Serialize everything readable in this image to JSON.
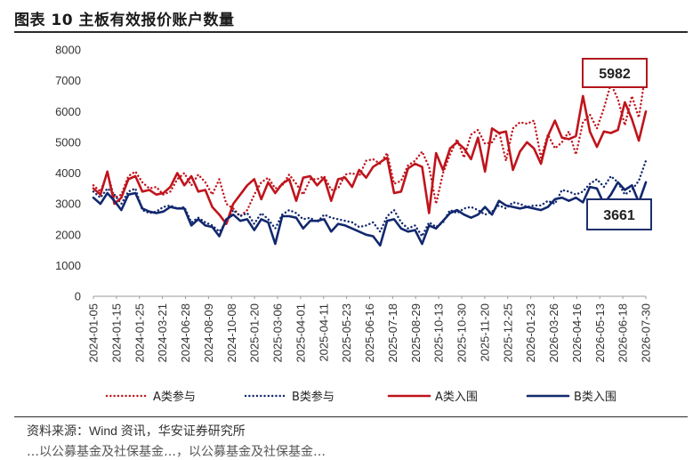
{
  "figure": {
    "title": "图表 10 主板有效报价账户数量",
    "source_prefix": "资料来源：",
    "source_name": "Wind 资讯，华安证券研究所",
    "next_line": "…以公募基金及社保基金…，以公募基金及社保基金…"
  },
  "colors": {
    "red": "#c0141c",
    "navy": "#12286e",
    "callout_red_border": "#b3161d",
    "callout_navy_border": "#1d2e6e"
  },
  "chart_data": {
    "type": "line",
    "ylim": [
      0,
      8000
    ],
    "yticks": [
      "0",
      "1000",
      "2000",
      "3000",
      "4000",
      "5000",
      "6000",
      "7000",
      "8000"
    ],
    "x_tick_labels": [
      "2024-01-05",
      "2024-01-15",
      "2024-01-25",
      "2024-03-21",
      "2024-06-28",
      "2024-08-09",
      "2024-10-08",
      "2025-01-20",
      "2025-03-06",
      "2025-04-01",
      "2025-04-11",
      "2025-05-23",
      "2025-06-16",
      "2025-07-18",
      "2025-08-29",
      "2025-10-13",
      "2025-10-30",
      "2025-11-20",
      "2025-12-25",
      "2026-01-23",
      "2026-03-26",
      "2026-04-16",
      "2026-05-13",
      "2026-06-18",
      "2026-07-30"
    ],
    "x_count": 80,
    "series": [
      {
        "name": "A类参与",
        "style": "dotted",
        "color": "#c0141c",
        "values": [
          3600,
          3400,
          4000,
          3200,
          3300,
          3900,
          4050,
          3700,
          3500,
          3550,
          3300,
          3400,
          3800,
          4000,
          3600,
          3950,
          3700,
          3300,
          3800,
          3000,
          2850,
          2600,
          2800,
          3300,
          3700,
          3850,
          3500,
          3600,
          3950,
          3650,
          3300,
          3800,
          3800,
          3900,
          3450,
          3500,
          3950,
          4000,
          3900,
          4400,
          4450,
          4300,
          4650,
          3650,
          3750,
          4250,
          4400,
          4700,
          4200,
          3000,
          4000,
          4600,
          5100,
          4500,
          5250,
          5400,
          4950,
          5000,
          5350,
          4400,
          5450,
          5650,
          5600,
          5700,
          4500,
          5250,
          4800,
          5000,
          5350,
          4600,
          5650,
          5900,
          5450,
          6100,
          6900,
          6400,
          5550,
          6500,
          5800,
          7300
        ]
      },
      {
        "name": "B类参与",
        "style": "dotted",
        "color": "#12286e",
        "values": [
          3400,
          3200,
          3500,
          3300,
          3000,
          3400,
          3500,
          2800,
          2700,
          2750,
          2900,
          2950,
          2850,
          2900,
          2400,
          2550,
          2400,
          2300,
          2100,
          2400,
          2800,
          2600,
          2700,
          2350,
          2700,
          2500,
          2200,
          2650,
          2800,
          2700,
          2500,
          2550,
          2400,
          2650,
          2550,
          2500,
          2450,
          2400,
          2250,
          2300,
          2400,
          2100,
          2600,
          2800,
          2400,
          2200,
          2300,
          1950,
          2400,
          2250,
          2400,
          2800,
          2700,
          2850,
          2900,
          2800,
          2650,
          2750,
          2950,
          2850,
          3050,
          3000,
          2900,
          2950,
          2950,
          3100,
          3000,
          3450,
          3400,
          3300,
          3400,
          3650,
          3800,
          3550,
          3900,
          3700,
          3300,
          3450,
          3750,
          4400
        ]
      },
      {
        "name": "A类入围",
        "style": "solid",
        "color": "#c0141c",
        "values": [
          3500,
          3300,
          4050,
          3000,
          3200,
          3800,
          3900,
          3400,
          3450,
          3300,
          3350,
          3550,
          4000,
          3600,
          3900,
          3400,
          3450,
          2900,
          2650,
          2350,
          3000,
          3300,
          3600,
          3800,
          3150,
          3700,
          3350,
          3650,
          3800,
          3100,
          3850,
          3900,
          3600,
          3850,
          3100,
          3800,
          3850,
          3550,
          4100,
          3850,
          4200,
          4350,
          4500,
          3350,
          3400,
          4150,
          4300,
          4200,
          2700,
          4650,
          4100,
          4800,
          5000,
          4800,
          4450,
          5150,
          4050,
          5450,
          5300,
          5350,
          4100,
          4700,
          5000,
          4800,
          4300,
          5200,
          5700,
          5150,
          5100,
          5200,
          6500,
          5350,
          4850,
          5350,
          5300,
          5400,
          6300,
          5750,
          5050,
          6000
        ]
      },
      {
        "name": "B类入围",
        "style": "solid",
        "color": "#12286e",
        "values": [
          3200,
          3000,
          3350,
          3100,
          2800,
          3300,
          3350,
          2850,
          2750,
          2700,
          2750,
          2900,
          2850,
          2850,
          2300,
          2500,
          2300,
          2250,
          1950,
          2500,
          2650,
          2450,
          2500,
          2150,
          2500,
          2400,
          1700,
          2600,
          2600,
          2550,
          2200,
          2450,
          2450,
          2500,
          2100,
          2350,
          2300,
          2200,
          2100,
          2000,
          1950,
          1650,
          2450,
          2500,
          2200,
          2100,
          2150,
          1700,
          2300,
          2200,
          2450,
          2700,
          2800,
          2650,
          2550,
          2650,
          2900,
          2650,
          3100,
          2950,
          2900,
          2850,
          2900,
          2850,
          2800,
          2900,
          3150,
          3200,
          3100,
          3200,
          3050,
          3550,
          3500,
          3000,
          3300,
          3700,
          3450,
          3600,
          3050,
          3700
        ]
      }
    ],
    "callouts": [
      {
        "label": "5982",
        "series": "A类入围",
        "color": "#b3161d"
      },
      {
        "label": "3661",
        "series": "B类入围",
        "color": "#1d2e6e"
      }
    ]
  }
}
